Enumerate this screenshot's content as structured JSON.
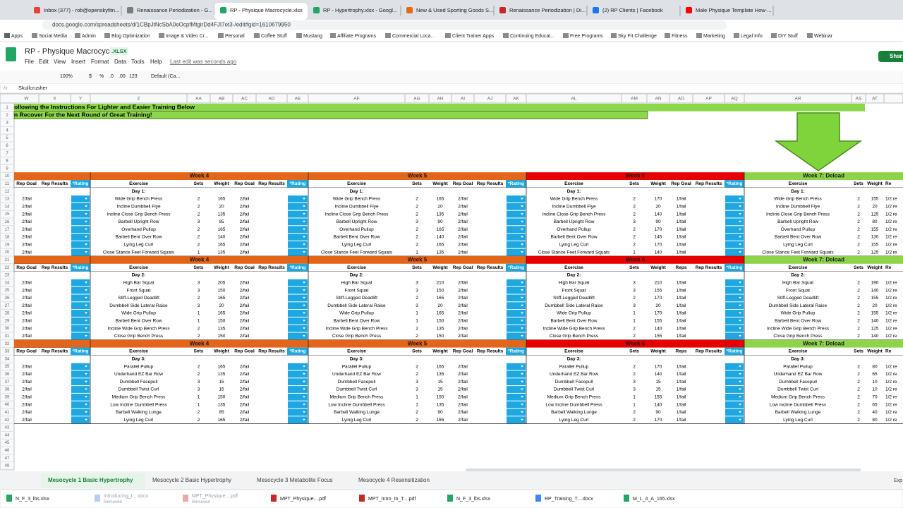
{
  "browser": {
    "tabs": [
      "Inbox (377) - rob@openskyfitn...",
      "Renaissance Periodization - G...",
      "RP - Physique Macrocycle.xlsx",
      "RP - Hypertrophy.xlsx - Googl...",
      "New & Used Sporting Goods S...",
      "Renaissance Periodization | Di...",
      "(2) RP Clients | Facebook",
      "Male Physique Template How-..."
    ],
    "url": "docs.google.com/spreadsheets/d/1CBpJtNcSbA0eOcpfMtgirDd4FJI7et3-/edit#gid=1610679950",
    "bookmarks": [
      "Apps",
      "Social Media",
      "Admin",
      "Blog Optimization",
      "Image & Video Cr...",
      "Personal",
      "Coffee Stuff",
      "Mustang",
      "Affiliate Programs",
      "Commercial Loca...",
      "Client Trainer Apps",
      "Continuing Educat...",
      "Free Programs",
      "Sky Fit Challenge",
      "Fitness",
      "Marketing",
      "Legal Info",
      "DIY Stuff",
      "Webinar"
    ]
  },
  "header": {
    "title": "RP - Physique Macrocycle",
    "badge": ".XLSX",
    "menu": [
      "File",
      "Edit",
      "View",
      "Insert",
      "Format",
      "Data",
      "Tools",
      "Help"
    ],
    "last_edit": "Last edit was seconds ago",
    "share": "Shar"
  },
  "toolbar": {
    "zoom": "100%",
    "currency": "$",
    "percent": "%",
    "dec_less": ".0",
    "dec_more": ".00",
    "format": "123",
    "font": "Default (Ca..."
  },
  "formula_bar": {
    "label": "fx",
    "content": "Skullcrusher"
  },
  "columns": [
    "W",
    "X",
    "Y",
    "Z",
    "AA",
    "AB",
    "AC",
    "AD",
    "AE",
    "AF",
    "AG",
    "AH",
    "AI",
    "AJ",
    "AK",
    "AL",
    "AM",
    "AN",
    "AO",
    "AP",
    "AQ",
    "AR",
    "AS",
    "AT"
  ],
  "row_numbers": [
    1,
    2,
    3,
    4,
    5,
    6,
    7,
    8,
    9,
    10,
    11,
    12,
    13,
    14,
    15,
    16,
    17,
    18,
    19,
    20,
    21,
    22,
    23,
    24,
    25,
    26,
    27,
    28,
    29,
    30,
    31,
    32,
    33,
    34,
    35,
    36,
    37,
    38,
    39,
    40,
    41,
    42,
    43,
    44,
    45,
    46,
    47,
    48
  ],
  "banner": [
    "ollowing the Instructions For Lighter and Easier Training Below",
    "n Recover For the Next Round of Great Training!"
  ],
  "blocks": [
    {
      "day": "Day 1:",
      "left": {
        "headers": [
          "Rep Goal",
          "Rep Results",
          "*Rating"
        ],
        "values": [
          "2/fail",
          "2/fail",
          "2/fail",
          "2/fail",
          "2/fail",
          "2/fail",
          "2/fail",
          "2/fail"
        ]
      },
      "weeks": [
        {
          "title": "Week 4",
          "headers": [
            "Exercise",
            "Sets",
            "Weight",
            "Rep Goal",
            "Rep Results",
            "*Rating"
          ],
          "day": "Day 1:",
          "rows": [
            [
              "Wide Grip Bench Press",
              2,
              165,
              "2/fail"
            ],
            [
              "Incline Dumbbell Flye",
              2,
              20,
              "2/fail"
            ],
            [
              "Incline Close Grip Bench Press",
              2,
              135,
              "2/fail"
            ],
            [
              "Barbell Upright Row",
              3,
              85,
              "2/fail"
            ],
            [
              "Overhand Pullup",
              2,
              165,
              "2/fail"
            ],
            [
              "Barbell Bent Over Row",
              2,
              140,
              "2/fail"
            ],
            [
              "Lying Leg Curl",
              2,
              165,
              "2/fail"
            ],
            [
              "Close Stance Feet Forward Squats",
              1,
              135,
              "2/fail"
            ]
          ]
        },
        {
          "title": "Week 5",
          "headers": [
            "Exercise",
            "Sets",
            "Weight",
            "Rep Goal",
            "Rep Results",
            "*Rating"
          ],
          "day": "Day 1:",
          "rows": [
            [
              "Wide Grip Bench Press",
              2,
              165,
              "2/fail"
            ],
            [
              "Incline Dumbbell Flye",
              2,
              20,
              "2/fail"
            ],
            [
              "Incline Close Grip Bench Press",
              2,
              135,
              "2/fail"
            ],
            [
              "Barbell Upright Row",
              3,
              90,
              "2/fail"
            ],
            [
              "Overhand Pullup",
              2,
              165,
              "2/fail"
            ],
            [
              "Barbell Bent Over Row",
              2,
              140,
              "2/fail"
            ],
            [
              "Lying Leg Curl",
              2,
              165,
              "2/fail"
            ],
            [
              "Close Stance Feet Forward Squats",
              1,
              135,
              "2/fail"
            ]
          ]
        },
        {
          "title": "Week 6",
          "headers": [
            "Exercise",
            "Sets",
            "Weight",
            "Rep Goal",
            "Rep Results",
            "*Rating"
          ],
          "day": "Day 1:",
          "rows": [
            [
              "Wide Grip Bench Press",
              2,
              170,
              "1/fail"
            ],
            [
              "Incline Dumbbell Flye",
              2,
              20,
              "1/fail"
            ],
            [
              "Incline Close Grip Bench Press",
              2,
              140,
              "1/fail"
            ],
            [
              "Barbell Upright Row",
              3,
              90,
              "1/fail"
            ],
            [
              "Overhand Pullup",
              2,
              170,
              "1/fail"
            ],
            [
              "Barbell Bent Over Row",
              2,
              145,
              "1/fail"
            ],
            [
              "Lying Leg Curl",
              2,
              170,
              "1/fail"
            ],
            [
              "Close Stance Feet Forward Squats",
              1,
              140,
              "1/fail"
            ]
          ]
        },
        {
          "title": "Week 7: Deload",
          "headers": [
            "Exercise",
            "Sets",
            "Weight",
            "Re"
          ],
          "day": "Day 1:",
          "rows": [
            [
              "Wide Grip Bench Press",
              2,
              155,
              "1/2 re"
            ],
            [
              "Incline Dumbbell Flye",
              2,
              20,
              "1/2 re"
            ],
            [
              "Incline Close Grip Bench Press",
              2,
              125,
              "1/2 re"
            ],
            [
              "Barbell Upright Row",
              2,
              80,
              "1/2 re"
            ],
            [
              "Overhand Pullup",
              2,
              155,
              "1/2 re"
            ],
            [
              "Barbell Bent Over Row",
              2,
              130,
              "1/2 re"
            ],
            [
              "Lying Leg Curl",
              2,
              155,
              "1/2 re"
            ],
            [
              "Close Stance Feet Forward Squats",
              2,
              125,
              "1/2 re"
            ]
          ]
        }
      ]
    },
    {
      "day": "Day 2:",
      "left": {
        "headers": [
          "Rep Goal",
          "Rep Results",
          "*Rating"
        ],
        "values": [
          "2/fail",
          "2/fail",
          "2/fail",
          "2/fail",
          "2/fail",
          "2/fail",
          "2/fail",
          "2/fail"
        ]
      },
      "weeks": [
        {
          "title": "Week 4",
          "headers": [
            "Exercise",
            "Sets",
            "Weight",
            "Rep Goal",
            "Rep Results",
            "*Rating"
          ],
          "day": "Day 2:",
          "rows": [
            [
              "High Bar Squat",
              3,
              205,
              "2/fail"
            ],
            [
              "Front Squat",
              3,
              150,
              "2/fail"
            ],
            [
              "Stiff-Legged Deadlift",
              2,
              165,
              "2/fail"
            ],
            [
              "Dumbbell Side Lateral Raise",
              3,
              20,
              "2/fail"
            ],
            [
              "Wide Grip Pullup",
              1,
              165,
              "2/fail"
            ],
            [
              "Barbell Bent Over Row",
              1,
              150,
              "2/fail"
            ],
            [
              "Incline Wide Grip Bench Press",
              2,
              135,
              "2/fail"
            ],
            [
              "Close Grip Bench Press",
              2,
              150,
              "2/fail"
            ]
          ]
        },
        {
          "title": "Week 5",
          "headers": [
            "Exercise",
            "Sets",
            "Weight",
            "Rep Goal",
            "Rep Results",
            "*Rating"
          ],
          "day": "Day 2:",
          "rows": [
            [
              "High Bar Squat",
              3,
              210,
              "2/fail"
            ],
            [
              "Front Squat",
              3,
              150,
              "2/fail"
            ],
            [
              "Stiff-Legged Deadlift",
              2,
              165,
              "2/fail"
            ],
            [
              "Dumbbell Side Lateral Raise",
              3,
              20,
              "2/fail"
            ],
            [
              "Wide Grip Pullup",
              1,
              165,
              "2/fail"
            ],
            [
              "Barbell Bent Over Row",
              1,
              150,
              "2/fail"
            ],
            [
              "Incline Wide Grip Bench Press",
              2,
              135,
              "2/fail"
            ],
            [
              "Close Grip Bench Press",
              2,
              150,
              "2/fail"
            ]
          ]
        },
        {
          "title": "Week 6",
          "headers": [
            "Exercise",
            "Sets",
            "Weight",
            "Reps",
            "Rep Results",
            "*Rating"
          ],
          "day": "Day 2:",
          "rows": [
            [
              "High Bar Squat",
              3,
              210,
              "1/fail"
            ],
            [
              "Front Squat",
              3,
              155,
              "1/fail"
            ],
            [
              "Stiff-Legged Deadlift",
              2,
              170,
              "1/fail"
            ],
            [
              "Dumbbell Side Lateral Raise",
              3,
              20,
              "1/fail"
            ],
            [
              "Wide Grip Pullup",
              1,
              170,
              "1/fail"
            ],
            [
              "Barbell Bent Over Row",
              1,
              155,
              "1/fail"
            ],
            [
              "Incline Wide Grip Bench Press",
              2,
              140,
              "1/fail"
            ],
            [
              "Close Grip Bench Press",
              2,
              155,
              "1/fail"
            ]
          ]
        },
        {
          "title": "Week 7: Deload",
          "headers": [
            "Exercise",
            "Sets",
            "Weight",
            "Re"
          ],
          "day": "Day 2:",
          "rows": [
            [
              "High Bar Squat",
              2,
              190,
              "1/2 re"
            ],
            [
              "Front Squat",
              2,
              140,
              "1/2 re"
            ],
            [
              "Stiff-Legged Deadlift",
              2,
              155,
              "1/2 re"
            ],
            [
              "Dumbbell Side Lateral Raise",
              2,
              20,
              "1/2 re"
            ],
            [
              "Wide Grip Pullup",
              2,
              155,
              "1/2 re"
            ],
            [
              "Barbell Bent Over Row",
              2,
              140,
              "1/2 re"
            ],
            [
              "Incline Wide Grip Bench Press",
              2,
              125,
              "1/2 re"
            ],
            [
              "Close Grip Bench Press",
              2,
              140,
              "1/2 re"
            ]
          ]
        }
      ]
    },
    {
      "day": "Day 3:",
      "left": {
        "headers": [
          "Rep Goal",
          "Rep Results",
          "*Rating"
        ],
        "values": [
          "2/fail",
          "2/fail",
          "2/fail",
          "2/fail",
          "2/fail",
          "2/fail",
          "2/fail",
          "2/fail"
        ]
      },
      "weeks": [
        {
          "title": "Week 4",
          "headers": [
            "Exercise",
            "Sets",
            "Weight",
            "Rep Goal",
            "Rep Results",
            "*Rating"
          ],
          "day": "Day 3:",
          "rows": [
            [
              "Parallel Pullup",
              2,
              165,
              "2/fail"
            ],
            [
              "Underhand EZ Bar Row",
              2,
              135,
              "2/fail"
            ],
            [
              "Dumbbell Facepull",
              3,
              15,
              "2/fail"
            ],
            [
              "Dumbbell Twist Curl",
              3,
              15,
              "2/fail"
            ],
            [
              "Medium Grip Bench Press",
              1,
              150,
              "2/fail"
            ],
            [
              "Low Incline Dumbbell Press",
              1,
              135,
              "2/fail"
            ],
            [
              "Barbell Walking Lunge",
              2,
              85,
              "2/fail"
            ],
            [
              "Lying Leg Curl",
              2,
              165,
              "2/fail"
            ]
          ]
        },
        {
          "title": "Week 5",
          "headers": [
            "Exercise",
            "Sets",
            "Weight",
            "Rep Goal",
            "Rep Results",
            "*Rating"
          ],
          "day": "Day 3:",
          "rows": [
            [
              "Parallel Pullup",
              2,
              165,
              "2/fail"
            ],
            [
              "Underhand EZ Bar Row",
              2,
              135,
              "2/fail"
            ],
            [
              "Dumbbell Facepull",
              3,
              15,
              "2/fail"
            ],
            [
              "Dumbbell Twist Curl",
              3,
              15,
              "2/fail"
            ],
            [
              "Medium Grip Bench Press",
              1,
              150,
              "2/fail"
            ],
            [
              "Low Incline Dumbbell Press",
              1,
              135,
              "2/fail"
            ],
            [
              "Barbell Walking Lunge",
              2,
              90,
              "2/fail"
            ],
            [
              "Lying Leg Curl",
              2,
              165,
              "2/fail"
            ]
          ]
        },
        {
          "title": "Week 6",
          "headers": [
            "Exercise",
            "Sets",
            "Weight",
            "Reps",
            "Rep Results",
            "*Rating"
          ],
          "day": "Day 3:",
          "rows": [
            [
              "Parallel Pullup",
              2,
              170,
              "1/fail"
            ],
            [
              "Underhand EZ Bar Row",
              2,
              140,
              "1/fail"
            ],
            [
              "Dumbbell Facepull",
              3,
              15,
              "1/fail"
            ],
            [
              "Dumbbell Twist Curl",
              3,
              15,
              "1/fail"
            ],
            [
              "Medium Grip Bench Press",
              1,
              155,
              "1/fail"
            ],
            [
              "Low Incline Dumbbell Press",
              1,
              140,
              "1/fail"
            ],
            [
              "Barbell Walking Lunge",
              2,
              90,
              "1/fail"
            ],
            [
              "Lying Leg Curl",
              2,
              170,
              "1/fail"
            ]
          ]
        },
        {
          "title": "Week 7: Deload",
          "headers": [
            "Exercise",
            "Sets",
            "Weight",
            "Re"
          ],
          "day": "Day 3:",
          "rows": [
            [
              "Parallel Pullup",
              2,
              80,
              "1/2 re"
            ],
            [
              "Underhand EZ Bar Row",
              2,
              65,
              "1/2 re"
            ],
            [
              "Dumbbell Facepull",
              2,
              10,
              "1/2 re"
            ],
            [
              "Dumbbell Twist Curl",
              2,
              10,
              "1/2 re"
            ],
            [
              "Medium Grip Bench Press",
              2,
              70,
              "1/2 re"
            ],
            [
              "Low Incline Dumbbell Press",
              2,
              65,
              "1/2 re"
            ],
            [
              "Barbell Walking Lunge",
              2,
              40,
              "1/2 re"
            ],
            [
              "Lying Leg Curl",
              2,
              80,
              "1/2 re"
            ]
          ]
        }
      ]
    }
  ],
  "sheet_tabs": [
    "Mesocycle 1 Basic Hypertrophy",
    "Mesocycle 2 Basic Hypertrophy",
    "Mesocycle 3 Metabolite Focus",
    "Mesocycle 4 Resensitization"
  ],
  "downloads": [
    {
      "name": "N_F_3_lbs.xlsx"
    },
    {
      "name": "Introducing_t....docx",
      "status": "Removed"
    },
    {
      "name": "MPT_Physique....pdf",
      "status": "Removed"
    },
    {
      "name": "MPT_Physique....pdf"
    },
    {
      "name": "MPT_Intro_to_T....pdf"
    },
    {
      "name": "N_F_3_lbs.xlsx"
    },
    {
      "name": "RP_Training_T....docx"
    },
    {
      "name": "M_L_4_A_165.xlsx"
    }
  ],
  "explore": "Exp"
}
